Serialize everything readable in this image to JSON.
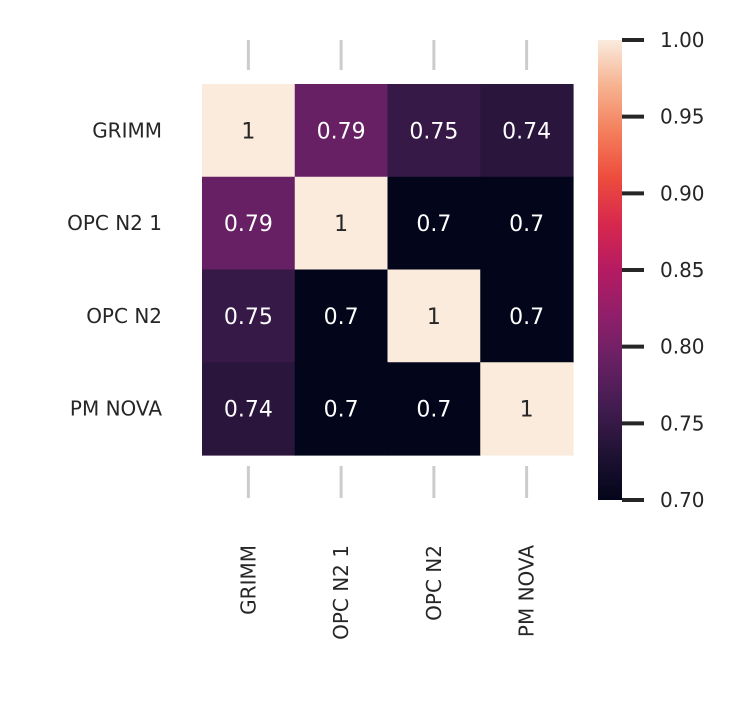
{
  "chart_data": {
    "type": "heatmap",
    "title": "",
    "xlabel": "",
    "ylabel": "",
    "x_categories": [
      "GRIMM",
      "OPC N2 1",
      "OPC N2",
      "PM NOVA"
    ],
    "y_categories": [
      "GRIMM",
      "OPC N2 1",
      "OPC N2",
      "PM NOVA"
    ],
    "values": [
      [
        1,
        0.79,
        0.75,
        0.74
      ],
      [
        0.79,
        1,
        0.7,
        0.7
      ],
      [
        0.75,
        0.7,
        1,
        0.7
      ],
      [
        0.74,
        0.7,
        0.7,
        1
      ]
    ],
    "annotations": [
      [
        "1",
        "0.79",
        "0.75",
        "0.74"
      ],
      [
        "0.79",
        "1",
        "0.7",
        "0.7"
      ],
      [
        "0.75",
        "0.7",
        "1",
        "0.7"
      ],
      [
        "0.74",
        "0.7",
        "0.7",
        "1"
      ]
    ],
    "colorbar": {
      "range": [
        0.7,
        1.0
      ],
      "ticks": [
        0.7,
        0.75,
        0.8,
        0.85,
        0.9,
        0.95,
        1.0
      ],
      "tick_labels": [
        "0.70",
        "0.75",
        "0.80",
        "0.85",
        "0.90",
        "0.95",
        "1.00"
      ],
      "colormap": "rocket",
      "placement": "right"
    },
    "grid": false,
    "colors": {
      "tick_mark": "#cccccc",
      "colorbar_tick": "#262626",
      "text": "#262626"
    }
  }
}
